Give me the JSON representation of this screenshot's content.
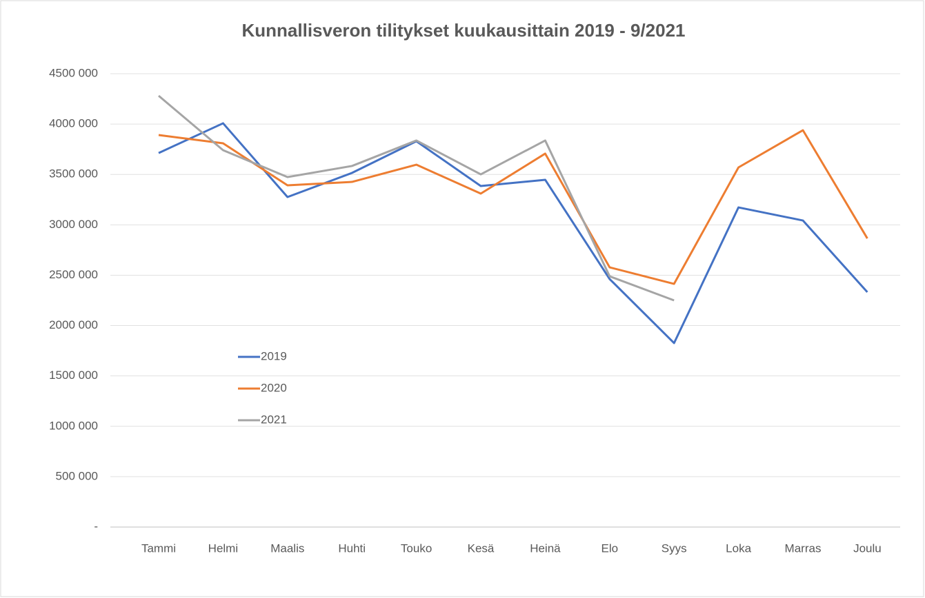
{
  "chart_data": {
    "type": "line",
    "title": "Kunnallisveron tilitykset kuukausittain 2019 - 9/2021",
    "categories": [
      "Tammi",
      "Helmi",
      "Maalis",
      "Huhti",
      "Touko",
      "Kesä",
      "Heinä",
      "Elo",
      "Syys",
      "Loka",
      "Marras",
      "Joulu"
    ],
    "series": [
      {
        "name": "2019",
        "color": "#4472c4",
        "values": [
          3713000,
          4008000,
          3276000,
          3515000,
          3830000,
          3385000,
          3447000,
          2462000,
          1826000,
          3173000,
          3043000,
          2332000
        ]
      },
      {
        "name": "2020",
        "color": "#ed7d31",
        "values": [
          3891000,
          3809000,
          3392000,
          3426000,
          3597000,
          3310000,
          3707000,
          2578000,
          2414000,
          3570000,
          3939000,
          2865000
        ]
      },
      {
        "name": "2021",
        "color": "#a5a5a5",
        "values": [
          4281000,
          3741000,
          3474000,
          3584000,
          3837000,
          3501000,
          3837000,
          2489000,
          2250000,
          null,
          null,
          null
        ]
      }
    ],
    "ylim": [
      0,
      4500000
    ],
    "yticks": [
      {
        "value": 0,
        "label": "-"
      },
      {
        "value": 500000,
        "label": "500 000"
      },
      {
        "value": 1000000,
        "label": "1000 000"
      },
      {
        "value": 1500000,
        "label": "1500 000"
      },
      {
        "value": 2000000,
        "label": "2000 000"
      },
      {
        "value": 2500000,
        "label": "2500 000"
      },
      {
        "value": 3000000,
        "label": "3000 000"
      },
      {
        "value": 3500000,
        "label": "3500 000"
      },
      {
        "value": 4000000,
        "label": "4000 000"
      },
      {
        "value": 4500000,
        "label": "4500 000"
      }
    ],
    "grid": true,
    "legend": "left"
  }
}
